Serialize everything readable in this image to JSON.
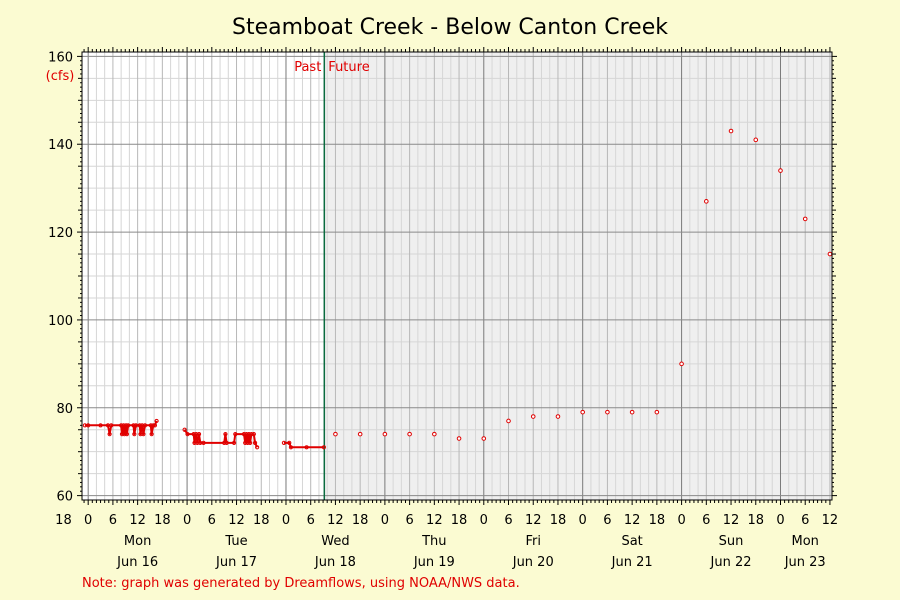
{
  "chart_data": {
    "type": "line",
    "title": "Steamboat Creek - Below Canton Creek",
    "ylabel": "(cfs)",
    "ylim": [
      59,
      161
    ],
    "y_ticks": [
      "60",
      "80",
      "100",
      "120",
      "140",
      "160"
    ],
    "x_unit": "hours since 2025-06-16 00:00 local",
    "xlim": [
      -1.5,
      180.5
    ],
    "x_major_ticks": [
      {
        "x": -6,
        "label": "18"
      },
      {
        "x": 0,
        "label": "0"
      },
      {
        "x": 6,
        "label": "6"
      },
      {
        "x": 12,
        "label": "12"
      },
      {
        "x": 18,
        "label": "18"
      },
      {
        "x": 24,
        "label": "0"
      },
      {
        "x": 30,
        "label": "6"
      },
      {
        "x": 36,
        "label": "12"
      },
      {
        "x": 42,
        "label": "18"
      },
      {
        "x": 48,
        "label": "0"
      },
      {
        "x": 54,
        "label": "6"
      },
      {
        "x": 60,
        "label": "12"
      },
      {
        "x": 66,
        "label": "18"
      },
      {
        "x": 72,
        "label": "0"
      },
      {
        "x": 78,
        "label": "6"
      },
      {
        "x": 84,
        "label": "12"
      },
      {
        "x": 90,
        "label": "18"
      },
      {
        "x": 96,
        "label": "0"
      },
      {
        "x": 102,
        "label": "6"
      },
      {
        "x": 108,
        "label": "12"
      },
      {
        "x": 114,
        "label": "18"
      },
      {
        "x": 120,
        "label": "0"
      },
      {
        "x": 126,
        "label": "6"
      },
      {
        "x": 132,
        "label": "12"
      },
      {
        "x": 138,
        "label": "18"
      },
      {
        "x": 144,
        "label": "0"
      },
      {
        "x": 150,
        "label": "6"
      },
      {
        "x": 156,
        "label": "12"
      },
      {
        "x": 162,
        "label": "18"
      },
      {
        "x": 168,
        "label": "0"
      },
      {
        "x": 174,
        "label": "6"
      },
      {
        "x": 180,
        "label": "12"
      }
    ],
    "days": [
      {
        "x": 12,
        "weekday": "Mon",
        "date": "Jun 16"
      },
      {
        "x": 36,
        "weekday": "Tue",
        "date": "Jun 17"
      },
      {
        "x": 60,
        "weekday": "Wed",
        "date": "Jun 18"
      },
      {
        "x": 84,
        "weekday": "Thu",
        "date": "Jun 19"
      },
      {
        "x": 108,
        "weekday": "Fri",
        "date": "Jun 20"
      },
      {
        "x": 132,
        "weekday": "Sat",
        "date": "Jun 21"
      },
      {
        "x": 156,
        "weekday": "Sun",
        "date": "Jun 22"
      },
      {
        "x": 174,
        "weekday": "Mon",
        "date": "Jun 23"
      }
    ],
    "now_x": 57.3,
    "past_label": "Past",
    "future_label": "Future",
    "series": [
      {
        "kind": "observed",
        "color": "#e00000",
        "segments": [
          [
            [
              -0.8,
              76
            ],
            [
              0,
              76
            ],
            [
              3,
              76
            ],
            [
              4.8,
              76
            ],
            [
              5.2,
              74
            ],
            [
              5.6,
              76
            ],
            [
              8,
              76
            ],
            [
              8.2,
              74
            ],
            [
              8.6,
              76
            ],
            [
              8.8,
              74
            ],
            [
              9.2,
              76
            ],
            [
              9.4,
              74
            ],
            [
              9.7,
              76
            ],
            [
              11,
              76
            ],
            [
              11.2,
              74
            ],
            [
              11.6,
              76
            ],
            [
              12.5,
              76
            ],
            [
              12.7,
              74
            ],
            [
              13.1,
              76
            ],
            [
              13.4,
              74
            ],
            [
              13.8,
              76
            ],
            [
              15.2,
              76
            ],
            [
              15.4,
              74
            ],
            [
              15.8,
              76
            ],
            [
              16.2,
              76
            ],
            [
              16.6,
              77
            ]
          ],
          [
            [
              23.4,
              75
            ],
            [
              24.1,
              74
            ],
            [
              25.6,
              74
            ],
            [
              25.8,
              72
            ],
            [
              26.2,
              74
            ],
            [
              26.5,
              72
            ],
            [
              26.9,
              74
            ],
            [
              27.2,
              72
            ],
            [
              28,
              72
            ],
            [
              33,
              72
            ],
            [
              33.3,
              74
            ],
            [
              33.6,
              72
            ],
            [
              35.4,
              72
            ],
            [
              35.7,
              74
            ],
            [
              37.8,
              74
            ],
            [
              38.1,
              72
            ],
            [
              38.4,
              74
            ],
            [
              38.7,
              72
            ],
            [
              39,
              74
            ],
            [
              39.3,
              72
            ],
            [
              39.6,
              74
            ],
            [
              40.2,
              74
            ],
            [
              40.5,
              72
            ],
            [
              41,
              71
            ]
          ],
          [
            [
              47.5,
              72
            ],
            [
              48.8,
              72
            ],
            [
              49.2,
              71
            ],
            [
              53,
              71
            ],
            [
              57.2,
              71
            ]
          ]
        ]
      },
      {
        "kind": "forecast",
        "color": "#e00000",
        "points": [
          [
            60,
            74
          ],
          [
            66,
            74
          ],
          [
            72,
            74
          ],
          [
            78,
            74
          ],
          [
            84,
            74
          ],
          [
            90,
            73
          ],
          [
            96,
            73
          ],
          [
            102,
            77
          ],
          [
            108,
            78
          ],
          [
            114,
            78
          ],
          [
            120,
            79
          ],
          [
            126,
            79
          ],
          [
            132,
            79
          ],
          [
            138,
            79
          ],
          [
            144,
            90
          ],
          [
            150,
            127
          ],
          [
            156,
            143
          ],
          [
            162,
            141
          ],
          [
            168,
            134
          ],
          [
            174,
            123
          ],
          [
            180,
            115
          ]
        ]
      }
    ]
  },
  "footnote": "Note: graph was generated by Dreamflows, using NOAA/NWS data."
}
